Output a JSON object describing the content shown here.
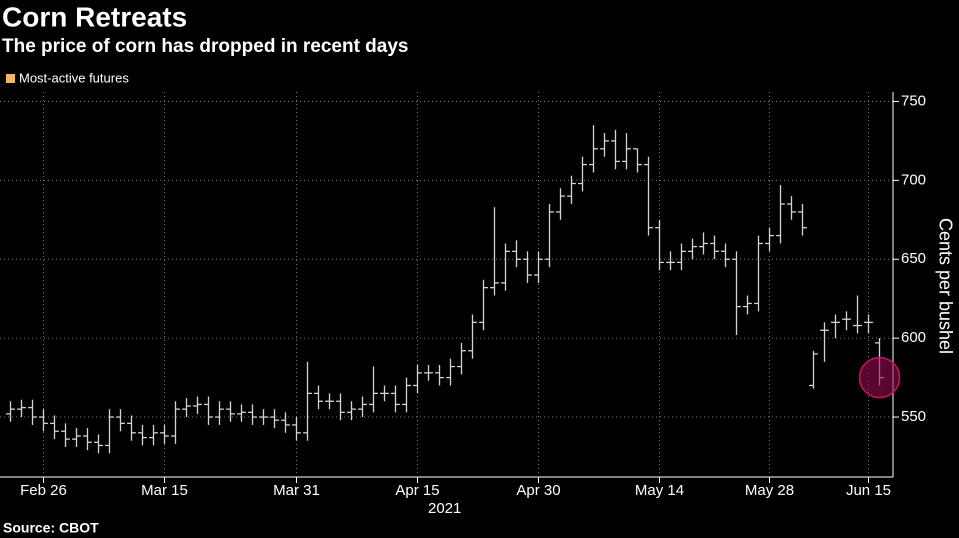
{
  "chart_data": {
    "type": "ohlc",
    "title": "Corn Retreats",
    "subtitle": "The price of corn has dropped in recent days",
    "y_label": "Cents per bushel",
    "x_sublabel": "2021",
    "source": "Source: CBOT",
    "categories": [
      null,
      null,
      null,
      "Feb 26",
      null,
      null,
      null,
      null,
      null,
      null,
      null,
      null,
      null,
      null,
      "Mar 15",
      null,
      null,
      null,
      null,
      null,
      null,
      null,
      null,
      null,
      null,
      null,
      "Mar 31",
      null,
      null,
      null,
      null,
      null,
      null,
      null,
      null,
      null,
      null,
      "Apr 15",
      null,
      null,
      null,
      null,
      null,
      null,
      null,
      null,
      null,
      null,
      "Apr 30",
      null,
      null,
      null,
      null,
      null,
      null,
      null,
      null,
      null,
      null,
      "May 14",
      null,
      null,
      null,
      null,
      null,
      null,
      null,
      null,
      null,
      "May 28",
      null,
      null,
      null,
      null,
      null,
      null,
      null,
      null,
      "Jun 15",
      null
    ],
    "series": [
      {
        "name": "Most-active futures",
        "color": "#f7b366",
        "bar_color": "#d4d4d4",
        "open": [
          552,
          555,
          556,
          550,
          546,
          541,
          536,
          538,
          534,
          532,
          550,
          546,
          540,
          537,
          540,
          538,
          555,
          557,
          558,
          550,
          555,
          552,
          553,
          550,
          550,
          548,
          545,
          540,
          565,
          560,
          560,
          553,
          555,
          558,
          565,
          565,
          558,
          570,
          578,
          578,
          575,
          582,
          592,
          610,
          632,
          635,
          655,
          650,
          640,
          650,
          680,
          690,
          698,
          710,
          720,
          725,
          712,
          720,
          710,
          670,
          648,
          648,
          655,
          658,
          660,
          655,
          650,
          620,
          622,
          660,
          665,
          685,
          680,
          570,
          605,
          610,
          612,
          608,
          610,
          597
        ],
        "high": [
          560,
          561,
          561,
          555,
          551,
          546,
          543,
          543,
          539,
          555,
          555,
          551,
          545,
          545,
          545,
          560,
          562,
          563,
          563,
          560,
          560,
          558,
          558,
          555,
          555,
          553,
          550,
          585,
          570,
          565,
          565,
          560,
          563,
          582,
          570,
          570,
          575,
          583,
          583,
          583,
          587,
          597,
          615,
          637,
          683,
          660,
          662,
          655,
          655,
          685,
          695,
          703,
          715,
          735,
          730,
          732,
          730,
          720,
          715,
          675,
          655,
          660,
          663,
          667,
          665,
          660,
          655,
          627,
          665,
          670,
          697,
          690,
          685,
          592,
          610,
          615,
          617,
          627,
          615,
          600
        ],
        "low": [
          547,
          550,
          545,
          541,
          536,
          531,
          531,
          529,
          527,
          527,
          541,
          535,
          532,
          532,
          533,
          533,
          550,
          552,
          545,
          545,
          547,
          547,
          545,
          545,
          543,
          540,
          535,
          535,
          555,
          555,
          548,
          548,
          550,
          553,
          560,
          553,
          553,
          565,
          573,
          570,
          570,
          577,
          587,
          605,
          627,
          630,
          645,
          635,
          635,
          645,
          675,
          685,
          693,
          705,
          715,
          707,
          707,
          705,
          665,
          643,
          643,
          643,
          650,
          653,
          650,
          645,
          602,
          615,
          617,
          655,
          660,
          675,
          665,
          568,
          585,
          600,
          605,
          603,
          603,
          570
        ],
        "close": [
          555,
          556,
          550,
          546,
          541,
          536,
          538,
          534,
          532,
          550,
          546,
          540,
          537,
          540,
          538,
          555,
          557,
          558,
          550,
          555,
          552,
          553,
          550,
          550,
          548,
          545,
          540,
          565,
          560,
          560,
          553,
          555,
          558,
          565,
          565,
          558,
          570,
          578,
          578,
          575,
          582,
          592,
          610,
          632,
          635,
          655,
          650,
          640,
          650,
          680,
          690,
          698,
          710,
          720,
          725,
          712,
          720,
          710,
          670,
          648,
          648,
          655,
          658,
          660,
          655,
          650,
          620,
          622,
          660,
          665,
          685,
          680,
          670,
          590,
          605,
          610,
          612,
          608,
          610,
          575
        ]
      }
    ],
    "ylim": [
      512,
      756
    ],
    "yticks": [
      550,
      600,
      650,
      700,
      750
    ],
    "grid": true
  }
}
